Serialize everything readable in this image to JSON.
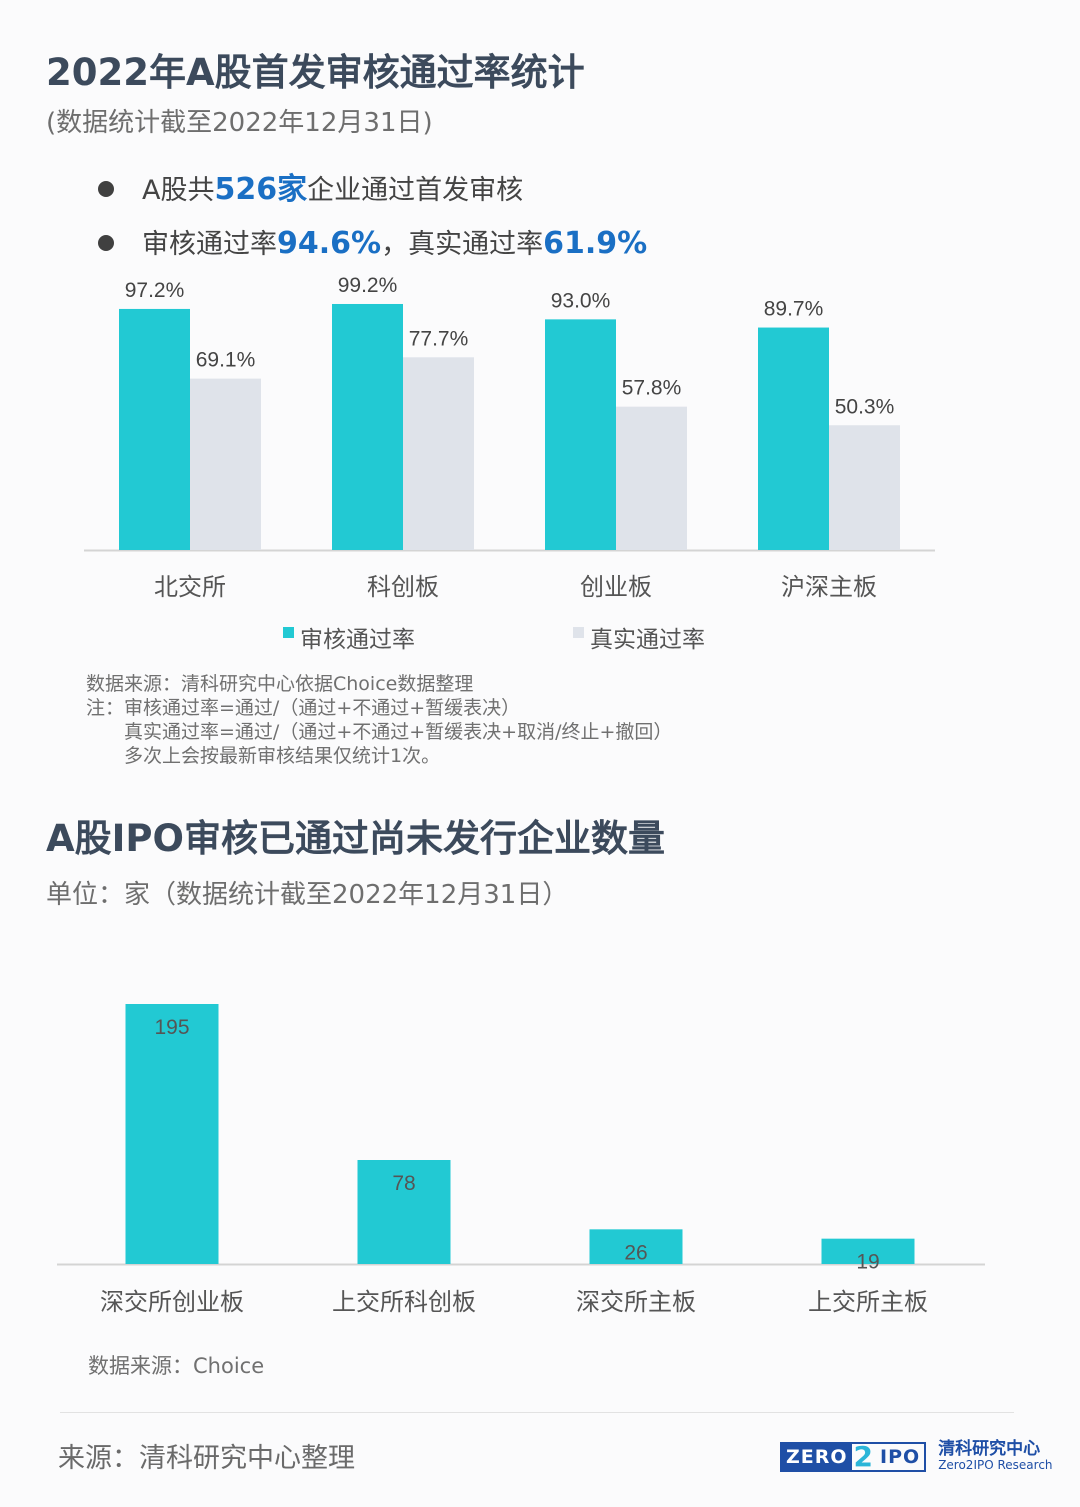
{
  "section1": {
    "title": "2022年A股首发审核通过率统计",
    "subtitle": "(数据统计截至2022年12月31日)",
    "bullet1": {
      "pre": "A股共",
      "num": "526家",
      "post": "企业通过首发审核"
    },
    "bullet2": {
      "pre": "审核通过率",
      "rate1": "94.6%",
      "mid": "，真实通过率",
      "rate2": "61.9%"
    },
    "notes": [
      "数据来源：清科研究中心依据Choice数据整理",
      "注：审核通过率=通过/（通过+不通过+暂缓表决）",
      "　　真实通过率=通过/（通过+不通过+暂缓表决+取消/终止+撤回）",
      "　　多次上会按最新审核结果仅统计1次。"
    ]
  },
  "section2": {
    "title": "A股IPO审核已通过尚未发行企业数量",
    "subtitle": "单位：家（数据统计截至2022年12月31日）",
    "source": "数据来源：Choice"
  },
  "footer": {
    "source": "来源：清科研究中心整理",
    "logo_zero": "ZERO",
    "logo_two": "2",
    "logo_ipo": "IPO",
    "logo_cn": "清科研究中心",
    "logo_en": "Zero2IPO Research"
  },
  "colors": {
    "primary": "#22c9d3",
    "secondary": "#dfe3ea",
    "axis": "#d4d4d4",
    "highlight": "#1a6fc4"
  },
  "chart_data": [
    {
      "type": "bar",
      "categories": [
        "北交所",
        "科创板",
        "创业板",
        "沪深主板"
      ],
      "series": [
        {
          "name": "审核通过率",
          "values": [
            97.2,
            99.2,
            93.0,
            89.7
          ],
          "labels": [
            "97.2%",
            "99.2%",
            "93.0%",
            "89.7%"
          ]
        },
        {
          "name": "真实通过率",
          "values": [
            69.1,
            77.7,
            57.8,
            50.3
          ],
          "labels": [
            "69.1%",
            "77.7%",
            "57.8%",
            "50.3%"
          ]
        }
      ],
      "ylim": [
        0,
        100
      ],
      "legend": "bottom",
      "grid": false
    },
    {
      "type": "bar",
      "categories": [
        "深交所创业板",
        "上交所科创板",
        "深交所主板",
        "上交所主板"
      ],
      "values": [
        195,
        78,
        26,
        19
      ],
      "ylim": [
        0,
        195
      ],
      "grid": false
    }
  ]
}
